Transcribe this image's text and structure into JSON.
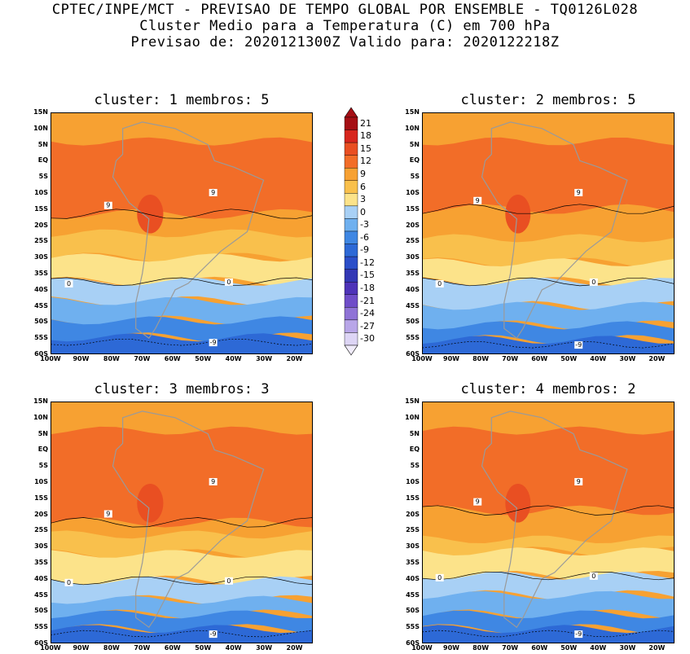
{
  "header": {
    "line1": "CPTEC/INPE/MCT - PREVISAO DE TEMPO GLOBAL POR ENSEMBLE - TQ0126L028",
    "line2": "Cluster Medio para a Temperatura (C) em 700 hPa",
    "line3": "Previsao de: 2020121300Z   Valido para: 2020122218Z"
  },
  "panels": [
    {
      "title": "cluster: 1   membros: 5"
    },
    {
      "title": "cluster: 2   membros: 5"
    },
    {
      "title": "cluster: 3   membros: 3"
    },
    {
      "title": "cluster: 4   membros: 2"
    }
  ],
  "axes": {
    "lat_labels": [
      "15N",
      "10N",
      "5N",
      "EQ",
      "5S",
      "10S",
      "15S",
      "20S",
      "25S",
      "30S",
      "35S",
      "40S",
      "45S",
      "50S",
      "55S",
      "60S"
    ],
    "lon_labels": [
      "100W",
      "90W",
      "80W",
      "70W",
      "60W",
      "50W",
      "40W",
      "30W",
      "20W"
    ]
  },
  "colorbar": {
    "labels": [
      "21",
      "18",
      "15",
      "12",
      "9",
      "6",
      "3",
      "0",
      "-3",
      "-6",
      "-9",
      "-12",
      "-15",
      "-18",
      "-21",
      "-24",
      "-27",
      "-30"
    ],
    "colors": [
      "#a50f15",
      "#d7261e",
      "#e94f22",
      "#f26d28",
      "#f7a132",
      "#f9c04c",
      "#fce38a",
      "#a8d0f5",
      "#6fb0ef",
      "#3f87e3",
      "#2d69d6",
      "#2b4fc9",
      "#3338b5",
      "#4e33b8",
      "#6f4dc8",
      "#8f73d6",
      "#b8a6e8",
      "#ddd5f5"
    ]
  },
  "contour_labels": {
    "nine": "9",
    "zero": "0",
    "minus_nine": "-9"
  }
}
